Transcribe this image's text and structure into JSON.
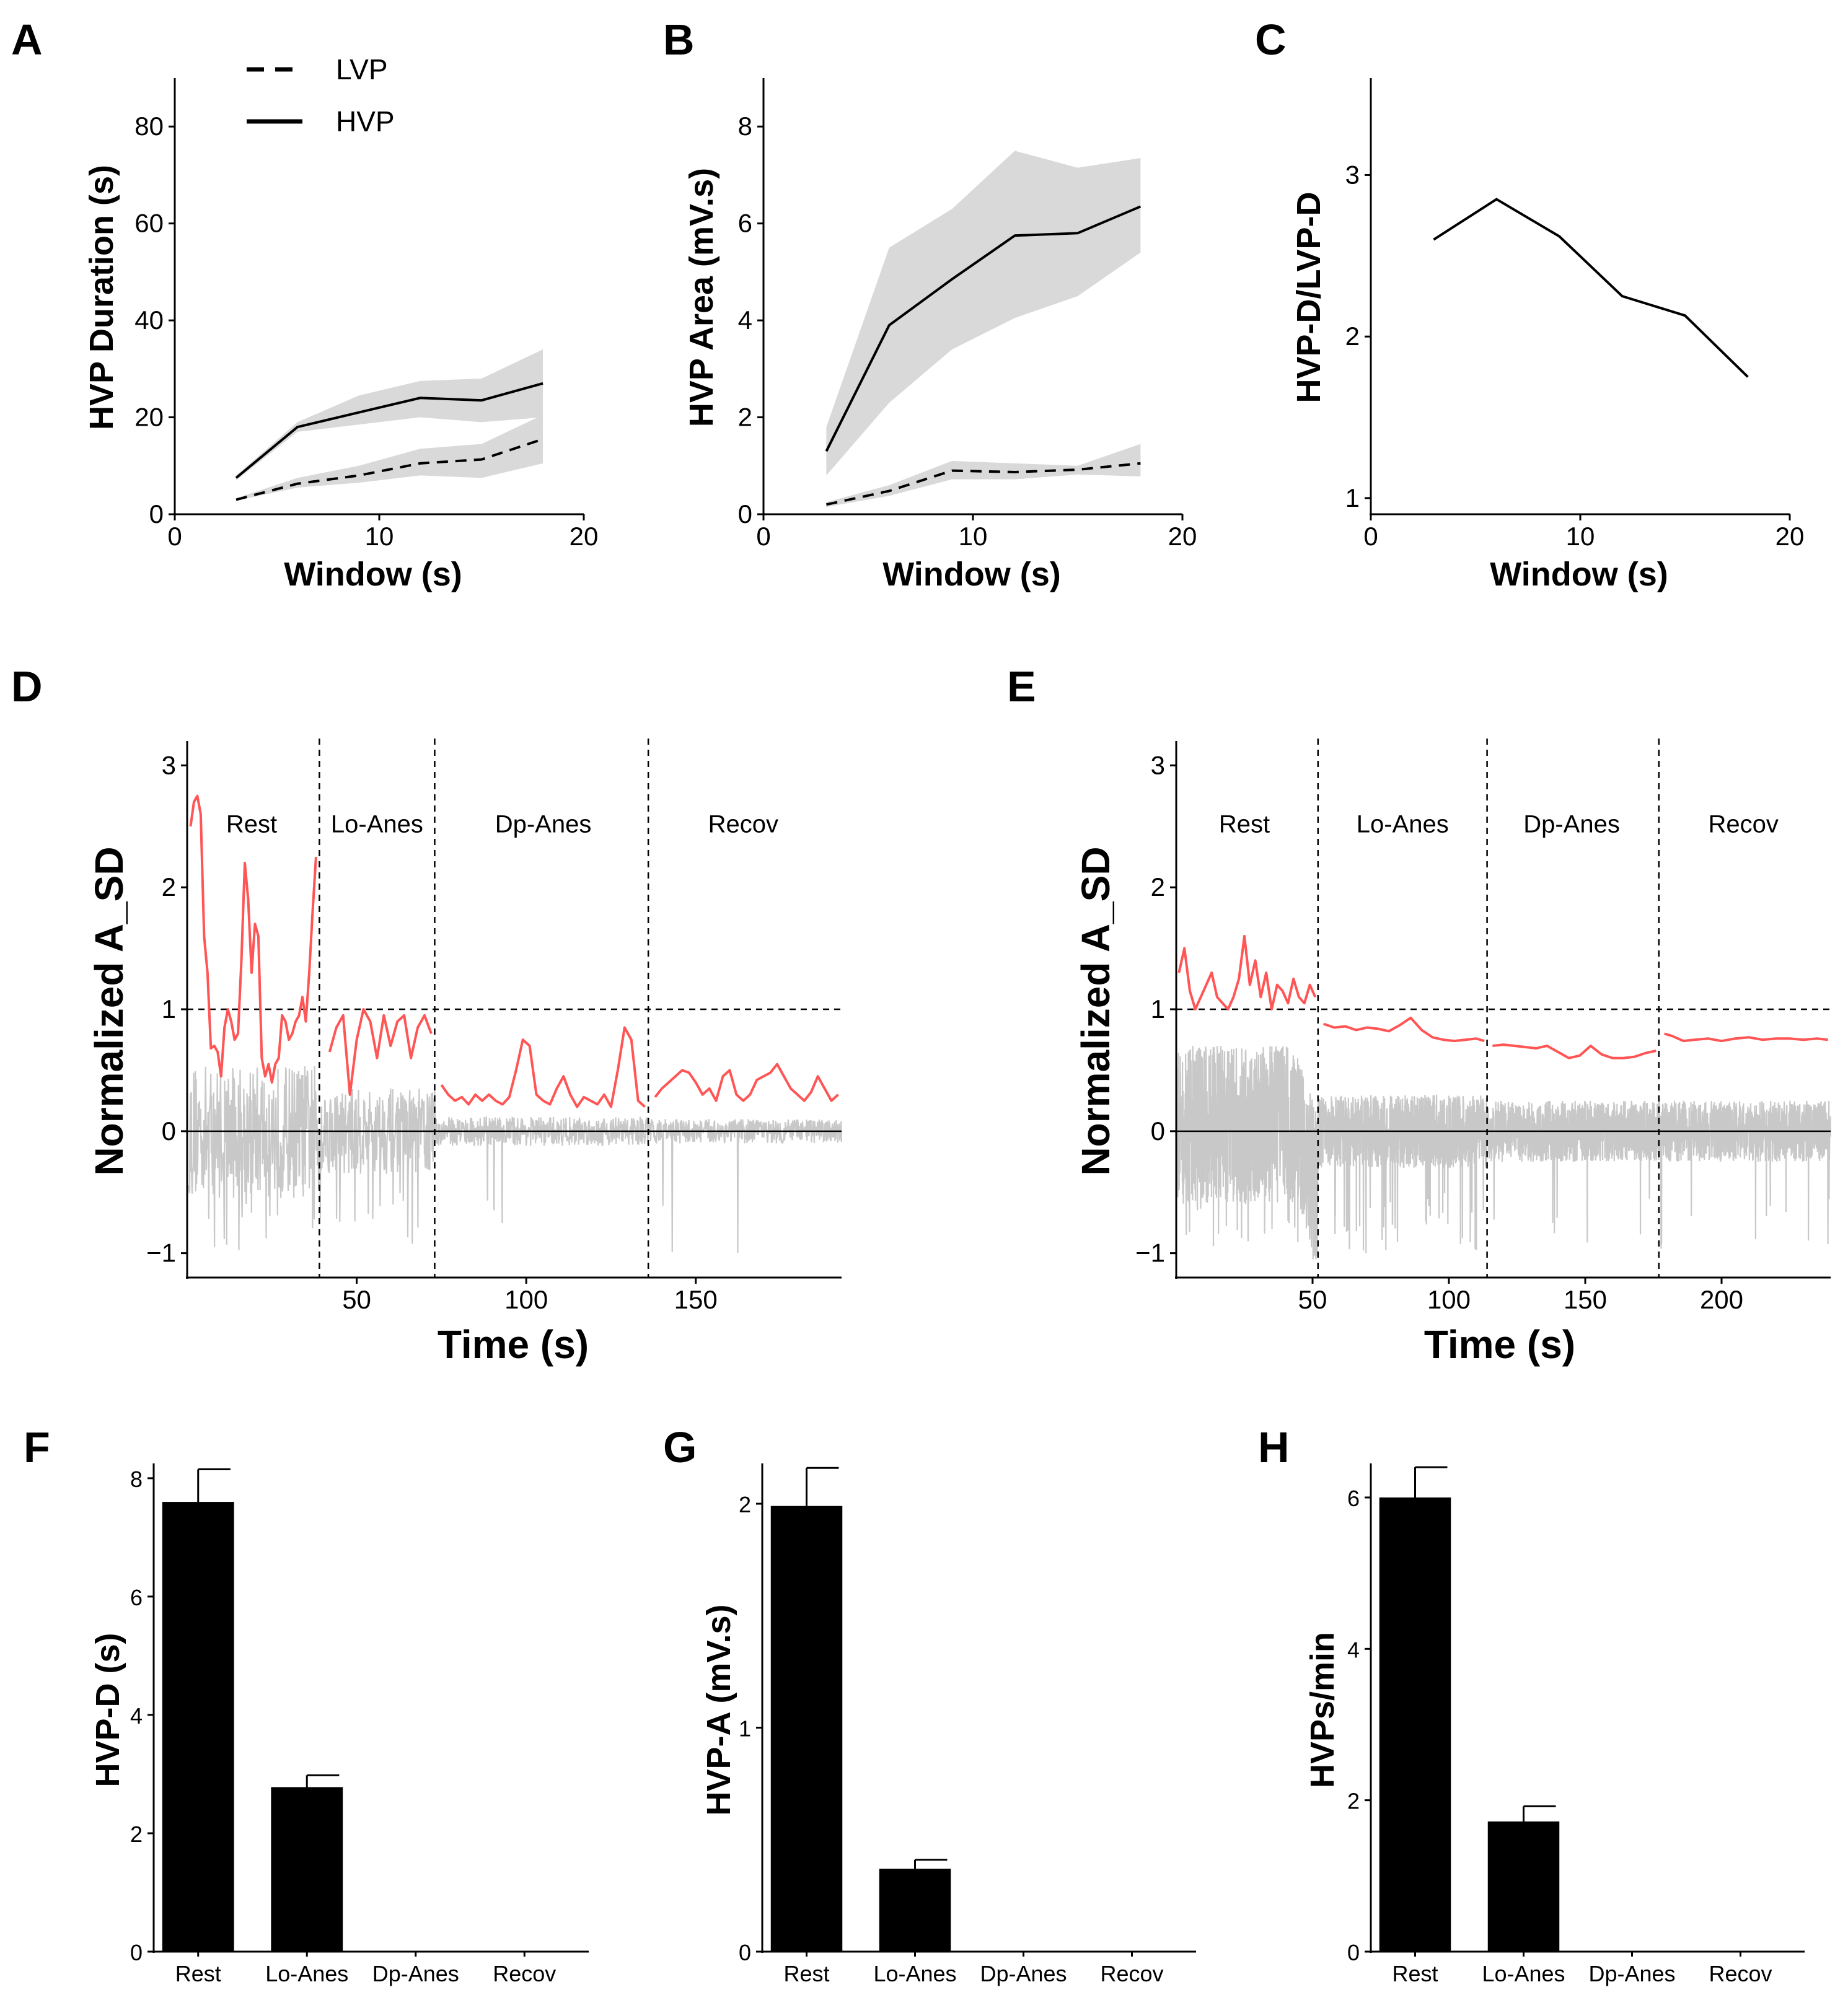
{
  "chart_data": [
    {
      "panel": "A",
      "type": "line",
      "xlabel": "Window (s)",
      "ylabel": "HVP Duration (s)",
      "xlim": [
        0,
        20
      ],
      "ylim": [
        0,
        90
      ],
      "xticks": [
        0,
        10,
        20
      ],
      "yticks": [
        0,
        20,
        40,
        60,
        80
      ],
      "legend": [
        {
          "label": "LVP",
          "style": "dashed"
        },
        {
          "label": "HVP",
          "style": "solid"
        }
      ],
      "legend_position": "top-left",
      "series": [
        {
          "name": "HVP",
          "style": "solid",
          "x": [
            3,
            6,
            9,
            12,
            15,
            18
          ],
          "y": [
            7.5,
            18,
            21,
            24,
            23.5,
            27
          ],
          "lower": [
            7,
            17,
            18.5,
            20,
            19,
            20
          ],
          "upper": [
            8,
            19,
            24.5,
            27.5,
            28,
            34
          ]
        },
        {
          "name": "LVP",
          "style": "dashed",
          "x": [
            3,
            6,
            9,
            12,
            15,
            18
          ],
          "y": [
            3,
            6.3,
            8,
            10.5,
            11.3,
            15.5
          ],
          "lower": [
            2.8,
            5.5,
            6.5,
            8,
            7.5,
            10.5
          ],
          "upper": [
            3.3,
            7.5,
            10,
            13.5,
            14.5,
            20.5
          ]
        }
      ]
    },
    {
      "panel": "B",
      "type": "line",
      "xlabel": "Window (s)",
      "ylabel": "HVP Area (mV.s)",
      "xlim": [
        0,
        20
      ],
      "ylim": [
        0,
        9
      ],
      "xticks": [
        0,
        10,
        20
      ],
      "yticks": [
        0,
        2,
        4,
        6,
        8
      ],
      "series": [
        {
          "name": "HVP",
          "style": "solid",
          "x": [
            3,
            6,
            9,
            12,
            15,
            18
          ],
          "y": [
            1.3,
            3.9,
            4.85,
            5.75,
            5.8,
            6.35
          ],
          "lower": [
            0.8,
            2.3,
            3.4,
            4.05,
            4.5,
            5.4
          ],
          "upper": [
            1.8,
            5.5,
            6.3,
            7.5,
            7.15,
            7.35
          ]
        },
        {
          "name": "LVP",
          "style": "dashed",
          "x": [
            3,
            6,
            9,
            12,
            15,
            18
          ],
          "y": [
            0.2,
            0.48,
            0.9,
            0.87,
            0.92,
            1.05
          ],
          "lower": [
            0.15,
            0.38,
            0.72,
            0.72,
            0.82,
            0.78
          ],
          "upper": [
            0.25,
            0.6,
            1.1,
            1.05,
            1.0,
            1.45
          ]
        }
      ]
    },
    {
      "panel": "C",
      "type": "line",
      "xlabel": "Window (s)",
      "ylabel": "HVP-D/LVP-D",
      "xlim": [
        0,
        20
      ],
      "ylim": [
        0.9,
        3.6
      ],
      "xticks": [
        0,
        10,
        20
      ],
      "yticks": [
        1,
        2,
        3
      ],
      "series": [
        {
          "name": "ratio",
          "style": "solid",
          "x": [
            3,
            6,
            9,
            12,
            15,
            18
          ],
          "y": [
            2.6,
            2.85,
            2.62,
            2.25,
            2.13,
            1.75
          ]
        }
      ]
    },
    {
      "panel": "D",
      "type": "line",
      "xlabel": "Time (s)",
      "ylabel": "Normalized A_SD",
      "xlim": [
        0,
        193
      ],
      "ylim": [
        -1.2,
        3.2
      ],
      "xticks": [
        50,
        100,
        150
      ],
      "yticks": [
        -1,
        0,
        1,
        2,
        3
      ],
      "reference_lines_y": [
        1
      ],
      "phase_boundaries": [
        39,
        73,
        136
      ],
      "phases": [
        {
          "label": "Rest",
          "x": 19
        },
        {
          "label": "Lo-Anes",
          "x": 56
        },
        {
          "label": "Dp-Anes",
          "x": 105
        },
        {
          "label": "Recov",
          "x": 164
        }
      ],
      "series": [
        {
          "name": "A_SD",
          "color": "#FF5555",
          "segments": [
            {
              "x": [
                1,
                2,
                3,
                4,
                5,
                6,
                7,
                8,
                9,
                10,
                11,
                12,
                13,
                14,
                15,
                16,
                17,
                18,
                19,
                20,
                21,
                22,
                23,
                24,
                25,
                26,
                27,
                28,
                29,
                30,
                31,
                32,
                33,
                34,
                35,
                36,
                37,
                38
              ],
              "y": [
                2.5,
                2.7,
                2.75,
                2.6,
                1.6,
                1.3,
                0.68,
                0.7,
                0.65,
                0.45,
                0.85,
                1.0,
                0.9,
                0.75,
                0.8,
                1.4,
                2.2,
                1.9,
                1.3,
                1.7,
                1.6,
                0.6,
                0.45,
                0.55,
                0.4,
                0.55,
                0.6,
                0.95,
                0.9,
                0.75,
                0.8,
                0.9,
                0.95,
                1.1,
                0.9,
                1.3,
                1.8,
                2.25
              ]
            },
            {
              "x": [
                42,
                44,
                46,
                48,
                50,
                52,
                54,
                56,
                58,
                60,
                62,
                64,
                66,
                68,
                70,
                72
              ],
              "y": [
                0.65,
                0.85,
                0.95,
                0.3,
                0.75,
                1.0,
                0.9,
                0.6,
                0.95,
                0.7,
                0.9,
                0.95,
                0.6,
                0.85,
                0.95,
                0.8
              ]
            },
            {
              "x": [
                75,
                77,
                79,
                81,
                83,
                85,
                87,
                89,
                91,
                93,
                95,
                97,
                99,
                101,
                103,
                105,
                107,
                109,
                111,
                113,
                115,
                117,
                119,
                121,
                123,
                125,
                127,
                129,
                131,
                133,
                135
              ],
              "y": [
                0.38,
                0.3,
                0.25,
                0.28,
                0.22,
                0.3,
                0.25,
                0.3,
                0.25,
                0.22,
                0.28,
                0.5,
                0.75,
                0.7,
                0.3,
                0.25,
                0.22,
                0.35,
                0.45,
                0.3,
                0.2,
                0.28,
                0.25,
                0.22,
                0.3,
                0.2,
                0.5,
                0.85,
                0.75,
                0.25,
                0.2
              ]
            },
            {
              "x": [
                138,
                140,
                142,
                144,
                146,
                148,
                150,
                152,
                154,
                156,
                158,
                160,
                162,
                164,
                166,
                168,
                170,
                172,
                174,
                176,
                178,
                180,
                182,
                184,
                186,
                188,
                190,
                192
              ],
              "y": [
                0.28,
                0.35,
                0.4,
                0.45,
                0.5,
                0.48,
                0.4,
                0.3,
                0.35,
                0.25,
                0.45,
                0.5,
                0.3,
                0.25,
                0.3,
                0.42,
                0.45,
                0.48,
                0.55,
                0.45,
                0.35,
                0.3,
                0.25,
                0.32,
                0.45,
                0.35,
                0.25,
                0.3
              ]
            }
          ]
        },
        {
          "name": "raw",
          "color": "#C8C8C8",
          "style": "noisy-trace"
        }
      ]
    },
    {
      "panel": "E",
      "type": "line",
      "xlabel": "Time (s)",
      "ylabel": "Normalized A_SD",
      "xlim": [
        0,
        240
      ],
      "ylim": [
        -1.2,
        3.2
      ],
      "xticks": [
        50,
        100,
        150,
        200
      ],
      "yticks": [
        -1,
        0,
        1,
        2,
        3
      ],
      "reference_lines_y": [
        1
      ],
      "phase_boundaries": [
        52,
        114,
        177
      ],
      "phases": [
        {
          "label": "Rest",
          "x": 25
        },
        {
          "label": "Lo-Anes",
          "x": 83
        },
        {
          "label": "Dp-Anes",
          "x": 145
        },
        {
          "label": "Recov",
          "x": 208
        }
      ],
      "series": [
        {
          "name": "A_SD",
          "color": "#FF5555",
          "segments": [
            {
              "x": [
                1,
                3,
                5,
                7,
                9,
                11,
                13,
                15,
                17,
                19,
                21,
                23,
                25,
                27,
                29,
                31,
                33,
                35,
                37,
                39,
                41,
                43,
                45,
                47,
                49,
                51
              ],
              "y": [
                1.3,
                1.5,
                1.15,
                1.0,
                1.1,
                1.2,
                1.3,
                1.1,
                1.05,
                1.0,
                1.1,
                1.25,
                1.6,
                1.2,
                1.4,
                1.1,
                1.3,
                1.0,
                1.2,
                1.15,
                1.05,
                1.25,
                1.1,
                1.05,
                1.2,
                1.1
              ]
            },
            {
              "x": [
                54,
                58,
                62,
                66,
                70,
                74,
                78,
                82,
                86,
                90,
                94,
                98,
                102,
                106,
                110,
                113
              ],
              "y": [
                0.88,
                0.85,
                0.86,
                0.83,
                0.85,
                0.84,
                0.82,
                0.87,
                0.93,
                0.83,
                0.77,
                0.75,
                0.74,
                0.75,
                0.76,
                0.74
              ]
            },
            {
              "x": [
                116,
                120,
                124,
                128,
                132,
                136,
                140,
                144,
                148,
                152,
                156,
                160,
                164,
                168,
                172,
                176
              ],
              "y": [
                0.7,
                0.71,
                0.7,
                0.69,
                0.68,
                0.7,
                0.65,
                0.6,
                0.62,
                0.7,
                0.63,
                0.6,
                0.6,
                0.61,
                0.64,
                0.66
              ]
            },
            {
              "x": [
                179,
                182,
                186,
                190,
                195,
                200,
                205,
                210,
                215,
                220,
                225,
                230,
                235,
                239
              ],
              "y": [
                0.8,
                0.78,
                0.74,
                0.75,
                0.76,
                0.74,
                0.76,
                0.77,
                0.75,
                0.76,
                0.76,
                0.75,
                0.76,
                0.75
              ]
            }
          ]
        },
        {
          "name": "raw",
          "color": "#C8C8C8",
          "style": "noisy-trace"
        }
      ]
    },
    {
      "panel": "F",
      "type": "bar",
      "ylabel": "HVP-D (s)",
      "categories": [
        "Rest",
        "Lo-Anes",
        "Dp-Anes",
        "Recov"
      ],
      "values": [
        7.6,
        2.78,
        0,
        0
      ],
      "errors": [
        0.55,
        0.2,
        0,
        0
      ],
      "ylim": [
        0,
        8.25
      ],
      "yticks": [
        0,
        2,
        4,
        6,
        8
      ]
    },
    {
      "panel": "G",
      "type": "bar",
      "ylabel": "HVP-A (mV.s)",
      "categories": [
        "Rest",
        "Lo-Anes",
        "Dp-Anes",
        "Recov"
      ],
      "values": [
        1.99,
        0.37,
        0,
        0
      ],
      "errors": [
        0.17,
        0.04,
        0,
        0
      ],
      "ylim": [
        0,
        2.18
      ],
      "yticks": [
        0,
        1,
        2
      ]
    },
    {
      "panel": "H",
      "type": "bar",
      "ylabel": "HVPs/min",
      "categories": [
        "Rest",
        "Lo-Anes",
        "Dp-Anes",
        "Recov"
      ],
      "values": [
        6.0,
        1.72,
        0,
        0
      ],
      "errors": [
        0.4,
        0.2,
        0,
        0
      ],
      "ylim": [
        0,
        6.45
      ],
      "yticks": [
        0,
        2,
        4,
        6
      ]
    }
  ]
}
